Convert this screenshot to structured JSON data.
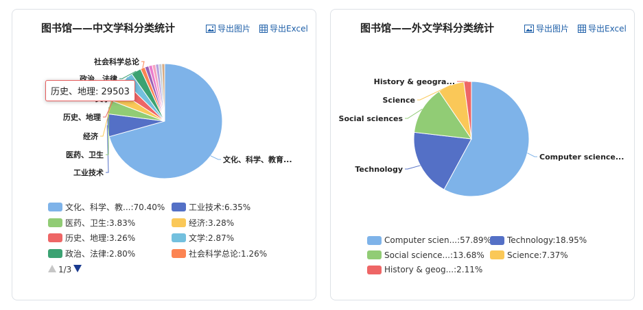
{
  "export_image_label": "导出图片",
  "export_excel_label": "导出Excel",
  "colors": [
    "#7eb3e9",
    "#5470c6",
    "#91cc75",
    "#fac858",
    "#ee6666",
    "#73c0de",
    "#3ba272",
    "#fc8452",
    "#9a60b4",
    "#ea7ccc",
    "#f4a4c0",
    "#b6a2de",
    "#c4ccd3",
    "#d7ab82"
  ],
  "left": {
    "title": "图书馆——中文学科分类统计",
    "tooltip": {
      "name": "历史、地理",
      "value": "29503"
    },
    "pager": {
      "text": "1/3"
    },
    "chart_data": {
      "type": "pie",
      "categories": [
        "文化、科学、教育...",
        "工业技术",
        "医药、卫生",
        "经济",
        "历史、地理",
        "文学",
        "政治、法律",
        "社会科学总论",
        "",
        "",
        "",
        "",
        "",
        ""
      ],
      "values": [
        70.4,
        6.35,
        3.83,
        3.28,
        3.26,
        2.87,
        2.8,
        1.26,
        1.1,
        1.0,
        0.95,
        0.9,
        0.85,
        0.8
      ],
      "slice_labels": [
        "文化、科学、教育...",
        "工业技术",
        "医药、卫生",
        "经济",
        "历史、地理",
        "文学",
        "政治、法律",
        "社会科学总论",
        "",
        "",
        "",
        "",
        "",
        ""
      ],
      "legend": [
        "文化、科学、教...:70.40%",
        "工业技术:6.35%",
        "医药、卫生:3.83%",
        "经济:3.28%",
        "历史、地理:3.26%",
        "文学:2.87%",
        "政治、法律:2.80%",
        "社会科学总论:1.26%"
      ]
    }
  },
  "right": {
    "title": "图书馆——外文学科分类统计",
    "chart_data": {
      "type": "pie",
      "categories": [
        "Computer science...",
        "Technology",
        "Social sciences",
        "Science",
        "History & geogra..."
      ],
      "values": [
        57.89,
        18.95,
        13.68,
        7.37,
        2.11
      ],
      "slice_labels": [
        "Computer science...",
        "Technology",
        "Social sciences",
        "Science",
        "History & geogra..."
      ],
      "legend": [
        "Computer scien...:57.89%",
        "Technology:18.95%",
        "Social science...:13.68%",
        "Science:7.37%",
        "History & geog...:2.11%"
      ]
    }
  }
}
